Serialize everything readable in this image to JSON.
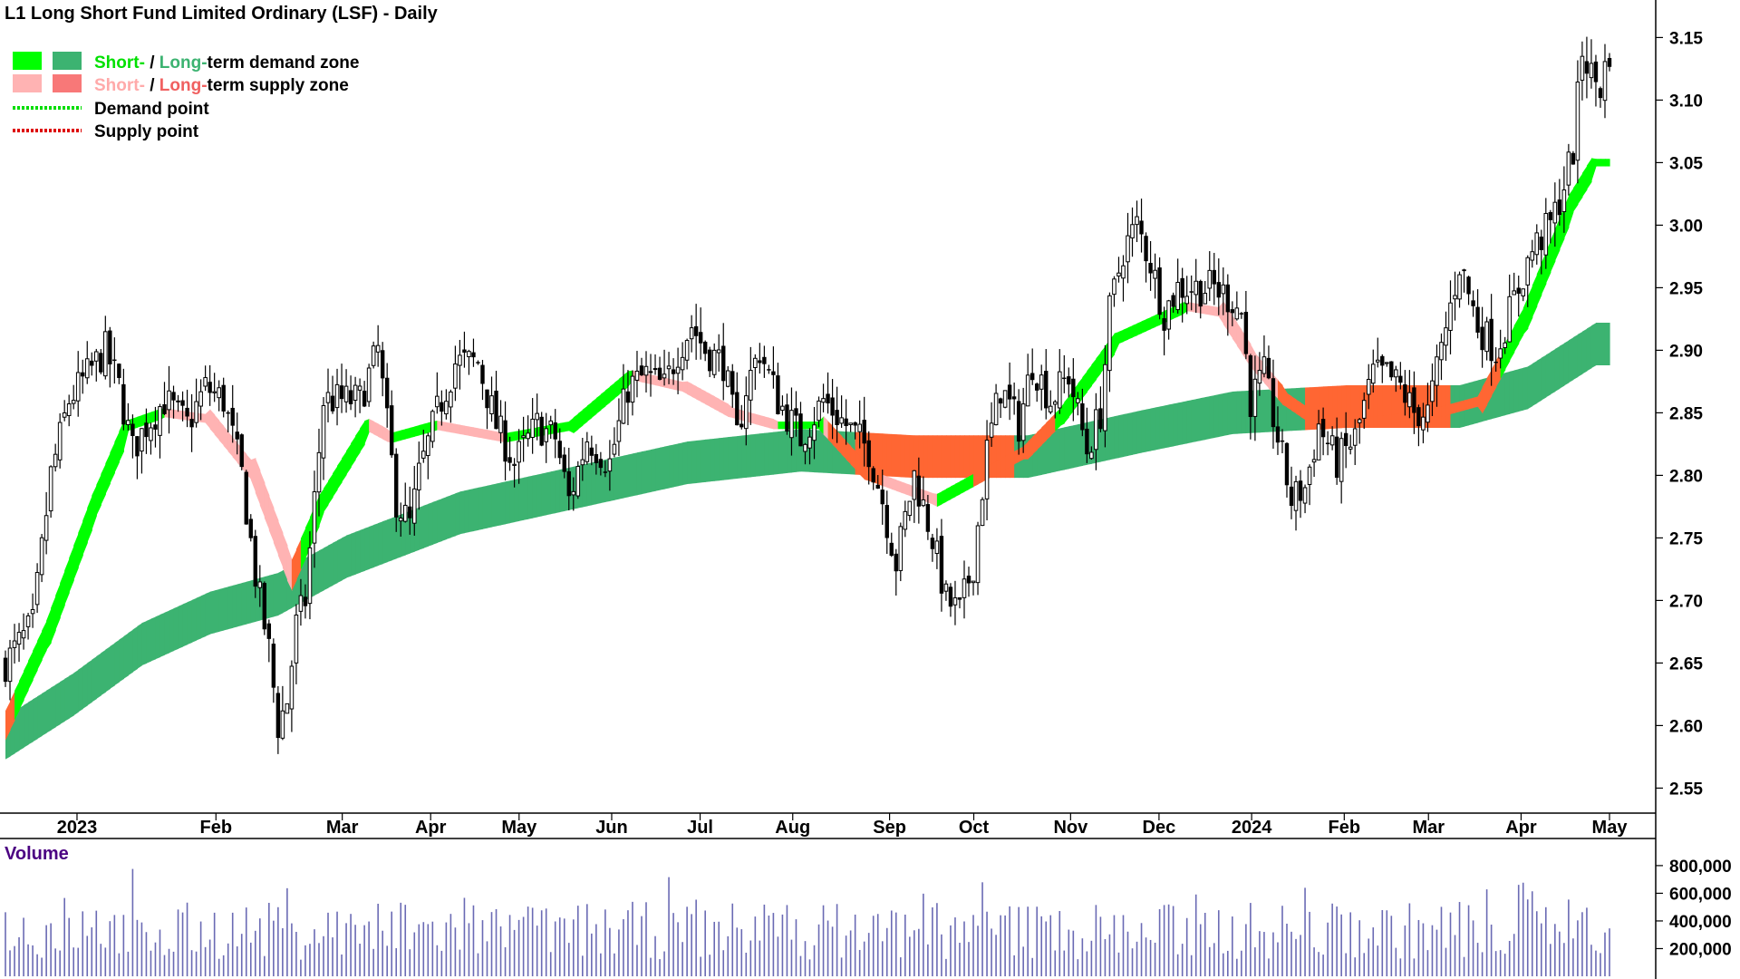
{
  "chart_data": {
    "type": "candlestick",
    "title": "L1 Long Short Fund Limited Ordinary (LSF) - Daily",
    "colors": {
      "short_demand": "#00ff00",
      "long_demand": "#3cb371",
      "short_supply": "#ffb3b3",
      "long_supply": "#ff6633",
      "candle": "#000000",
      "volume": "#6a6ab4",
      "volume_title": "#4b0082"
    },
    "legend": {
      "position": "top-left",
      "demand_zone": {
        "short": "Short-",
        "sep": " / ",
        "long": "Long-",
        "rest": "term demand zone"
      },
      "supply_zone": {
        "short": "Short-",
        "sep": " / ",
        "long": "Long-",
        "rest": "term supply zone"
      },
      "demand_point": "Demand point",
      "supply_point": "Supply point"
    },
    "price_axis": {
      "range": [
        2.53,
        3.18
      ],
      "ticks": [
        "3.15",
        "3.10",
        "3.05",
        "3.00",
        "2.95",
        "2.90",
        "2.85",
        "2.80",
        "2.75",
        "2.70",
        "2.65",
        "2.60",
        "2.55"
      ]
    },
    "months": [
      "2023",
      "Feb",
      "Mar",
      "Apr",
      "May",
      "Jun",
      "Jul",
      "Aug",
      "Sep",
      "Oct",
      "Nov",
      "Dec",
      "2024",
      "Feb",
      "Mar",
      "Apr",
      "May"
    ],
    "short_zone_mid": [
      [
        0,
        2.6
      ],
      [
        10,
        2.68
      ],
      [
        20,
        2.78
      ],
      [
        27,
        2.84
      ],
      [
        35,
        2.85
      ],
      [
        45,
        2.845
      ],
      [
        55,
        2.8
      ],
      [
        60,
        2.75
      ],
      [
        63,
        2.72
      ],
      [
        70,
        2.78
      ],
      [
        80,
        2.84
      ],
      [
        85,
        2.83
      ],
      [
        95,
        2.84
      ],
      [
        110,
        2.83
      ],
      [
        125,
        2.84
      ],
      [
        138,
        2.88
      ],
      [
        150,
        2.87
      ],
      [
        160,
        2.85
      ],
      [
        170,
        2.84
      ],
      [
        180,
        2.84
      ],
      [
        190,
        2.8
      ],
      [
        205,
        2.78
      ],
      [
        215,
        2.8
      ],
      [
        225,
        2.82
      ],
      [
        233,
        2.85
      ],
      [
        245,
        2.91
      ],
      [
        260,
        2.935
      ],
      [
        268,
        2.93
      ],
      [
        275,
        2.89
      ],
      [
        282,
        2.86
      ],
      [
        290,
        2.84
      ],
      [
        305,
        2.845
      ],
      [
        315,
        2.85
      ],
      [
        325,
        2.86
      ],
      [
        335,
        2.93
      ],
      [
        345,
        3.02
      ],
      [
        350,
        3.05
      ]
    ],
    "long_zone_mid": [
      [
        0,
        2.59
      ],
      [
        15,
        2.625
      ],
      [
        30,
        2.665
      ],
      [
        45,
        2.69
      ],
      [
        60,
        2.705
      ],
      [
        75,
        2.735
      ],
      [
        100,
        2.77
      ],
      [
        125,
        2.79
      ],
      [
        150,
        2.81
      ],
      [
        175,
        2.82
      ],
      [
        200,
        2.815
      ],
      [
        225,
        2.815
      ],
      [
        250,
        2.835
      ],
      [
        270,
        2.85
      ],
      [
        295,
        2.855
      ],
      [
        320,
        2.855
      ],
      [
        335,
        2.87
      ],
      [
        350,
        2.905
      ]
    ],
    "close_path": [
      [
        0,
        2.65
      ],
      [
        6,
        2.68
      ],
      [
        10,
        2.8
      ],
      [
        14,
        2.86
      ],
      [
        18,
        2.88
      ],
      [
        22,
        2.9
      ],
      [
        25,
        2.87
      ],
      [
        28,
        2.82
      ],
      [
        31,
        2.84
      ],
      [
        35,
        2.86
      ],
      [
        40,
        2.84
      ],
      [
        44,
        2.87
      ],
      [
        48,
        2.86
      ],
      [
        52,
        2.8
      ],
      [
        55,
        2.72
      ],
      [
        58,
        2.66
      ],
      [
        60,
        2.6
      ],
      [
        62,
        2.62
      ],
      [
        64,
        2.68
      ],
      [
        66,
        2.7
      ],
      [
        70,
        2.86
      ],
      [
        74,
        2.86
      ],
      [
        78,
        2.86
      ],
      [
        82,
        2.9
      ],
      [
        86,
        2.78
      ],
      [
        89,
        2.76
      ],
      [
        91,
        2.8
      ],
      [
        95,
        2.85
      ],
      [
        99,
        2.89
      ],
      [
        104,
        2.89
      ],
      [
        108,
        2.84
      ],
      [
        112,
        2.81
      ],
      [
        117,
        2.84
      ],
      [
        121,
        2.83
      ],
      [
        124,
        2.78
      ],
      [
        128,
        2.83
      ],
      [
        133,
        2.81
      ],
      [
        137,
        2.87
      ],
      [
        141,
        2.88
      ],
      [
        145,
        2.87
      ],
      [
        148,
        2.9
      ],
      [
        151,
        2.92
      ],
      [
        154,
        2.9
      ],
      [
        158,
        2.89
      ],
      [
        161,
        2.83
      ],
      [
        163,
        2.87
      ],
      [
        166,
        2.9
      ],
      [
        170,
        2.86
      ],
      [
        175,
        2.83
      ],
      [
        180,
        2.86
      ],
      [
        185,
        2.84
      ],
      [
        190,
        2.82
      ],
      [
        193,
        2.78
      ],
      [
        196,
        2.73
      ],
      [
        200,
        2.8
      ],
      [
        204,
        2.75
      ],
      [
        207,
        2.7
      ],
      [
        210,
        2.69
      ],
      [
        213,
        2.73
      ],
      [
        216,
        2.82
      ],
      [
        219,
        2.87
      ],
      [
        223,
        2.84
      ],
      [
        226,
        2.89
      ],
      [
        230,
        2.86
      ],
      [
        234,
        2.88
      ],
      [
        238,
        2.82
      ],
      [
        241,
        2.85
      ],
      [
        243,
        2.93
      ],
      [
        246,
        2.98
      ],
      [
        249,
        3.0
      ],
      [
        252,
        2.97
      ],
      [
        255,
        2.93
      ],
      [
        258,
        2.95
      ],
      [
        262,
        2.95
      ],
      [
        266,
        2.95
      ],
      [
        270,
        2.94
      ],
      [
        272,
        2.93
      ],
      [
        274,
        2.86
      ],
      [
        277,
        2.88
      ],
      [
        280,
        2.83
      ],
      [
        283,
        2.78
      ],
      [
        286,
        2.79
      ],
      [
        289,
        2.84
      ],
      [
        293,
        2.81
      ],
      [
        297,
        2.83
      ],
      [
        301,
        2.88
      ],
      [
        304,
        2.88
      ],
      [
        307,
        2.87
      ],
      [
        310,
        2.85
      ],
      [
        313,
        2.85
      ],
      [
        316,
        2.9
      ],
      [
        320,
        2.97
      ],
      [
        324,
        2.92
      ],
      [
        328,
        2.9
      ],
      [
        332,
        2.94
      ],
      [
        336,
        2.98
      ],
      [
        340,
        3.0
      ],
      [
        342,
        3.02
      ],
      [
        345,
        3.06
      ],
      [
        347,
        3.14
      ],
      [
        349,
        3.12
      ],
      [
        351,
        3.11
      ],
      [
        353,
        3.14
      ]
    ]
  },
  "volume_panel": {
    "title": "Volume",
    "ticks": [
      "800,000",
      "600,000",
      "400,000",
      "200,000"
    ],
    "max": 950000
  }
}
